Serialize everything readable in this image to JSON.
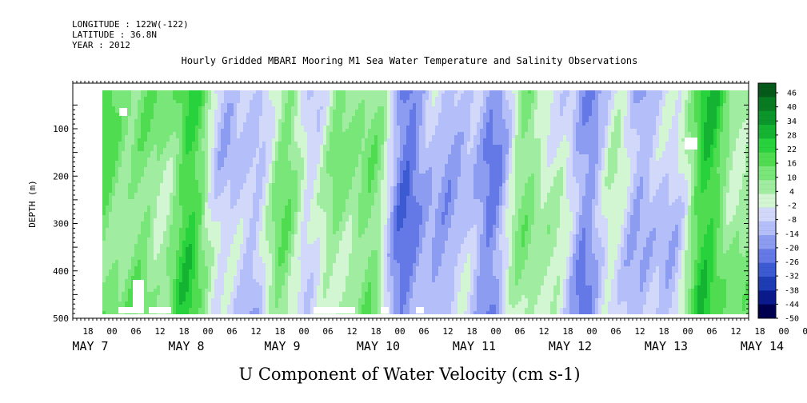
{
  "header": {
    "longitude": "LONGITUDE : 122W(-122)",
    "latitude": "LATITUDE : 36.8N",
    "year": "YEAR : 2012"
  },
  "chart_data": {
    "type": "heatmap",
    "title": "Hourly Gridded MBARI Mooring M1 Sea Water Temperature and Salinity Observations",
    "bottom_label": "U Component of Water Velocity (cm s-1)",
    "ylabel": "DEPTH (m)",
    "ylim": [
      500,
      20
    ],
    "y_ticks": [
      100,
      200,
      300,
      400,
      500
    ],
    "x_range_hours": [
      "MAY 6 12:00",
      "MAY 14 14:00"
    ],
    "x_hour_labels": [
      "18",
      "00",
      "06",
      "12",
      "18",
      "00",
      "06",
      "12",
      "18",
      "00",
      "06",
      "12",
      "18",
      "00",
      "06",
      "12",
      "18",
      "00",
      "06",
      "12",
      "18",
      "00",
      "06",
      "12",
      "18",
      "00",
      "06",
      "12",
      "18",
      "00",
      "06",
      "12"
    ],
    "x_day_labels": [
      "MAY  7",
      "MAY  8",
      "MAY  9",
      "MAY 10",
      "MAY 11",
      "MAY 12",
      "MAY 13",
      "MAY 14"
    ],
    "colorbar": {
      "labels": [
        "46",
        "40",
        "34",
        "28",
        "22",
        "16",
        "10",
        "4",
        "-2",
        "-8",
        "-14",
        "-20",
        "-26",
        "-32",
        "-38",
        "-44",
        "-50"
      ],
      "range": [
        -50,
        50
      ],
      "colors_low_to_high": [
        "#000050",
        "#0a1a8c",
        "#1e3cb4",
        "#3c5ad2",
        "#6478e6",
        "#8c9cf0",
        "#b4bef8",
        "#d2d8fa",
        "#d2f5d2",
        "#a0eca0",
        "#78e678",
        "#50dc50",
        "#28d23c",
        "#14b432",
        "#0a962a",
        "#087a22",
        "#055a1a"
      ]
    },
    "data_gaps": [
      "before MAY 7 00",
      "small gaps near 70 m on MAY 7",
      "near 120-170 m on MAY 14",
      "near-bottom gaps on MAY 7-10"
    ],
    "grid": false,
    "legend": "colorbar right"
  }
}
